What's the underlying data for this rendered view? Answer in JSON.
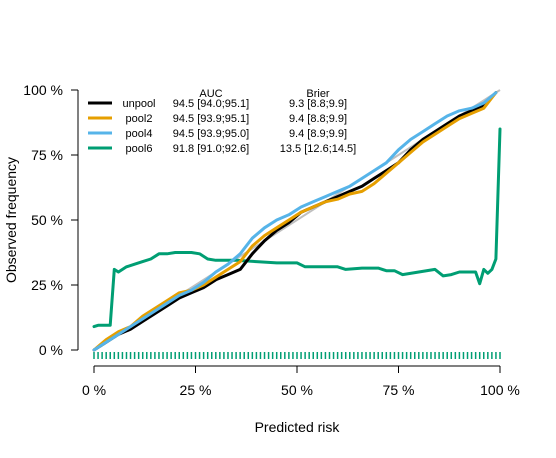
{
  "chart_data": {
    "type": "line",
    "title": "",
    "xlabel": "Predicted risk",
    "ylabel": "Observed frequency",
    "xlim": [
      0,
      100
    ],
    "ylim": [
      0,
      100
    ],
    "x_ticks": [
      "0 %",
      "25 %",
      "50 %",
      "75 %",
      "100 %"
    ],
    "y_ticks": [
      "0 %",
      "25 %",
      "50 %",
      "75 %",
      "100 %"
    ],
    "x_tick_values": [
      0,
      25,
      50,
      75,
      100
    ],
    "y_tick_values": [
      0,
      25,
      50,
      75,
      100
    ],
    "grid": false,
    "legend_position": "top-left",
    "legend_headers": {
      "auc": "AUC",
      "brier": "Brier"
    },
    "reference_line": {
      "x": [
        0,
        100
      ],
      "y": [
        0,
        100
      ],
      "color": "#bfbfbf"
    },
    "rug_color": "#009E73",
    "series": [
      {
        "name": "unpool",
        "auc": "94.5 [94.0;95.1]",
        "brier": "9.3 [8.8;9.9]",
        "color": "#000000",
        "x": [
          0,
          3,
          6,
          9,
          12,
          15,
          18,
          21,
          24,
          27,
          30,
          33,
          36,
          39,
          42,
          45,
          48,
          51,
          54,
          57,
          60,
          63,
          66,
          69,
          72,
          75,
          78,
          81,
          84,
          87,
          90,
          93,
          96,
          99
        ],
        "y": [
          0,
          3,
          6,
          8,
          11,
          14,
          17,
          20,
          22,
          24,
          27,
          29,
          31,
          37,
          42,
          46,
          49,
          53,
          55,
          57,
          59,
          61,
          63,
          66,
          69,
          72,
          77,
          81,
          84,
          87,
          90,
          92,
          94,
          99
        ]
      },
      {
        "name": "pool2",
        "auc": "94.5 [93.9;95.1]",
        "brier": "9.4 [8.8;9.9]",
        "color": "#E69F00",
        "x": [
          0,
          3,
          6,
          9,
          12,
          15,
          18,
          21,
          24,
          27,
          30,
          33,
          36,
          39,
          42,
          45,
          48,
          51,
          54,
          57,
          60,
          63,
          66,
          69,
          72,
          75,
          78,
          81,
          84,
          87,
          90,
          93,
          96,
          99
        ],
        "y": [
          0,
          4,
          7,
          9,
          13,
          16,
          19,
          22,
          23,
          25,
          28,
          31,
          34,
          40,
          44,
          47,
          50,
          53,
          55,
          57,
          58,
          60,
          61,
          64,
          68,
          72,
          76,
          80,
          83,
          86,
          89,
          91,
          93,
          99
        ]
      },
      {
        "name": "pool4",
        "auc": "94.5 [93.9;95.0]",
        "brier": "9.4 [8.9;9.9]",
        "color": "#56B4E9",
        "x": [
          0,
          3,
          6,
          9,
          12,
          15,
          18,
          21,
          24,
          27,
          30,
          33,
          36,
          39,
          42,
          45,
          48,
          51,
          54,
          57,
          60,
          63,
          66,
          69,
          72,
          75,
          78,
          81,
          84,
          87,
          90,
          93,
          96,
          99
        ],
        "y": [
          0,
          3,
          6,
          9,
          12,
          15,
          18,
          21,
          23,
          26,
          30,
          33,
          37,
          43,
          47,
          50,
          52,
          55,
          57,
          59,
          61,
          63,
          66,
          69,
          72,
          77,
          81,
          84,
          87,
          90,
          92,
          93,
          95,
          99
        ]
      },
      {
        "name": "pool6",
        "auc": "91.8 [91.0;92.6]",
        "brier": "13.5 [12.6;14.5]",
        "color": "#009E73",
        "x": [
          0,
          1,
          3,
          4,
          5,
          6,
          8,
          10,
          12,
          14,
          16,
          18,
          20,
          22,
          24,
          26,
          28,
          30,
          35,
          40,
          45,
          50,
          52,
          56,
          60,
          62,
          66,
          70,
          72,
          74,
          76,
          80,
          84,
          86,
          88,
          90,
          92,
          94,
          95,
          96,
          97,
          98,
          99,
          100
        ],
        "y": [
          9,
          9.5,
          9.5,
          9.5,
          31,
          30,
          32,
          33,
          34,
          35,
          37,
          37,
          37.5,
          37.5,
          37.5,
          37,
          35,
          34.5,
          34.5,
          34,
          33.5,
          33.5,
          32,
          32,
          32,
          31,
          31.5,
          31.5,
          30.5,
          30.5,
          29,
          30,
          31,
          28.5,
          29,
          30,
          30,
          30,
          25.5,
          31,
          29.5,
          31,
          35,
          85
        ]
      }
    ]
  }
}
